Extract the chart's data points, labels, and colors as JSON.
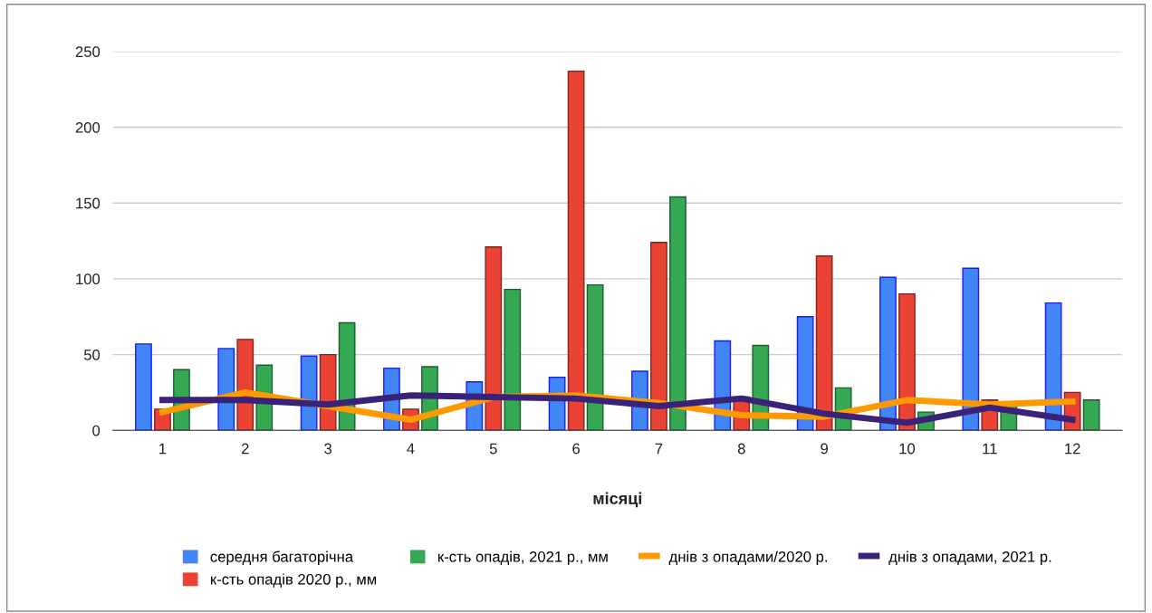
{
  "chart_data": {
    "type": "bar",
    "xlabel": "місяці",
    "categories": [
      "1",
      "2",
      "3",
      "4",
      "5",
      "6",
      "7",
      "8",
      "9",
      "10",
      "11",
      "12"
    ],
    "series": [
      {
        "name": "середня багаторічна",
        "color": "#4285f4",
        "values": [
          57,
          54,
          49,
          41,
          32,
          35,
          39,
          59,
          75,
          101,
          107,
          84
        ]
      },
      {
        "name": "к-сть опадів 2020 р., мм",
        "color": "#ea4335",
        "values": [
          14,
          60,
          50,
          14,
          121,
          237,
          124,
          22,
          115,
          90,
          20,
          25
        ]
      },
      {
        "name": "к-сть опадів, 2021 р., мм",
        "color": "#34a853",
        "values": [
          40,
          43,
          71,
          42,
          93,
          96,
          154,
          56,
          28,
          12,
          17,
          20
        ]
      },
      {
        "name": "днів з опадами/2020 р.",
        "color": "#ff9900",
        "type": "line",
        "values": [
          12,
          25,
          16,
          7,
          22,
          23,
          18,
          10,
          9,
          20,
          17,
          19
        ]
      },
      {
        "name": "днів з опадами, 2021 р.",
        "color": "#3b2279",
        "type": "line",
        "values": [
          20,
          20,
          17,
          23,
          22,
          21,
          16,
          21,
          11,
          5,
          15,
          7
        ]
      }
    ],
    "ylim": [
      0,
      250
    ],
    "yticks": [
      0,
      50,
      100,
      150,
      200,
      250
    ],
    "grid": "y",
    "legend": "bottom"
  }
}
